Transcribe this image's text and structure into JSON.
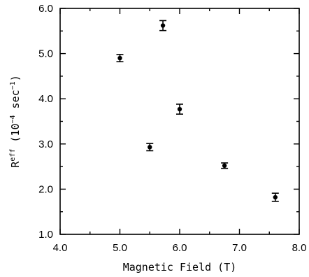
{
  "chart_data": {
    "type": "scatter",
    "title": "",
    "xlabel": "Magnetic Field (T)",
    "ylabel": {
      "base": "R",
      "superscript": "eff",
      "open": " (10",
      "exponent": "−4",
      "unit": " sec",
      "unit_exponent": "−1",
      "close": ")"
    },
    "xlim": [
      4.0,
      8.0
    ],
    "ylim": [
      1.0,
      6.0
    ],
    "xticks": [
      "4.0",
      "5.0",
      "6.0",
      "7.0",
      "8.0"
    ],
    "yticks": [
      "1.0",
      "2.0",
      "3.0",
      "4.0",
      "5.0",
      "6.0"
    ],
    "grid": false,
    "legend": "none",
    "series": [
      {
        "points": [
          {
            "x": 5.0,
            "y": 4.9,
            "err": 0.08
          },
          {
            "x": 5.5,
            "y": 2.93,
            "err": 0.08
          },
          {
            "x": 5.72,
            "y": 5.62,
            "err": 0.11
          },
          {
            "x": 6.0,
            "y": 3.77,
            "err": 0.11
          },
          {
            "x": 6.75,
            "y": 2.52,
            "err": 0.06
          },
          {
            "x": 7.6,
            "y": 1.82,
            "err": 0.09
          }
        ]
      }
    ]
  }
}
